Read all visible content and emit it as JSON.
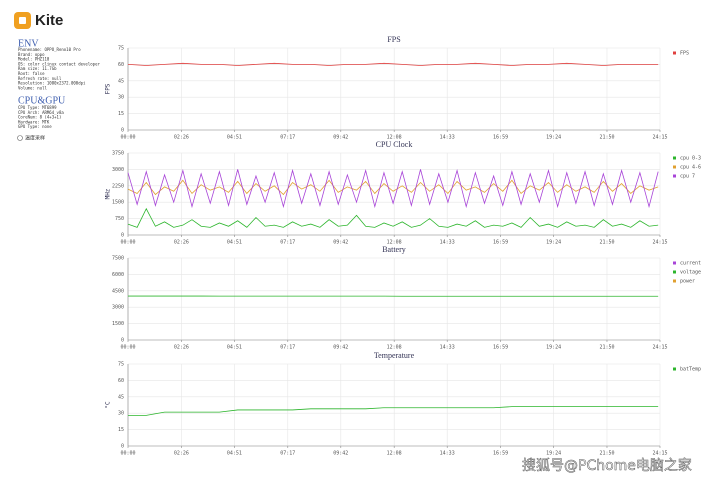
{
  "sidebar": {
    "logo": "Kite",
    "env_title": "ENV",
    "env_lines": [
      "Phonename: OPPO_Reno10 Pro",
      "Brand: oppo",
      "Model: PHZ110",
      "OS: color clinux contact developer",
      "Ram size: 11.7Gb",
      "Root: false",
      "Refresh rate: null",
      "Resolution: 1080x2372.000dpi",
      "Volume: null"
    ],
    "cpu_title": "CPU&GPU",
    "cpu_lines": [
      "CPU Type: MT6899",
      "CPU Arch: ARM64_v8a",
      "CoreNum: 8 (4+3+1)",
      "Hardware: MTK",
      "GPU Type: none"
    ],
    "checkbox_label": "温度采样"
  },
  "watermark": "搜狐号@PChome电脑之家",
  "chart_data": [
    {
      "type": "line",
      "title": "FPS",
      "y_label": "FPS",
      "grid": true,
      "xlim": [
        0,
        1455
      ],
      "xticks": [
        {
          "value": 0,
          "label": "00:00"
        },
        {
          "value": 146,
          "label": "02:26"
        },
        {
          "value": 291,
          "label": "04:51"
        },
        {
          "value": 437,
          "label": "07:17"
        },
        {
          "value": 582,
          "label": "09:42"
        },
        {
          "value": 728,
          "label": "12:08"
        },
        {
          "value": 873,
          "label": "14:33"
        },
        {
          "value": 1019,
          "label": "16:59"
        },
        {
          "value": 1164,
          "label": "19:24"
        },
        {
          "value": 1310,
          "label": "21:50"
        },
        {
          "value": 1455,
          "label": "24:15"
        }
      ],
      "ylim": [
        0,
        75
      ],
      "yticks": [
        0,
        15,
        30,
        45,
        60,
        75
      ],
      "x": [
        0,
        50,
        100,
        150,
        200,
        250,
        300,
        350,
        400,
        450,
        500,
        550,
        600,
        650,
        700,
        750,
        800,
        850,
        900,
        950,
        1000,
        1050,
        1100,
        1150,
        1200,
        1250,
        1300,
        1350,
        1400,
        1450
      ],
      "series": [
        {
          "name": "FPS",
          "color": "#e0403f",
          "values": [
            60,
            59,
            60,
            61,
            60,
            60,
            59,
            60,
            61,
            60,
            60,
            59,
            60,
            60,
            61,
            60,
            59,
            60,
            60,
            61,
            60,
            59,
            60,
            60,
            61,
            60,
            59,
            60,
            60,
            60
          ]
        }
      ]
    },
    {
      "type": "line",
      "title": "CPU Clock",
      "y_label": "MHz",
      "grid": true,
      "xlim": [
        0,
        1455
      ],
      "xticks": [
        {
          "value": 0,
          "label": "00:00"
        },
        {
          "value": 146,
          "label": "02:26"
        },
        {
          "value": 291,
          "label": "04:51"
        },
        {
          "value": 437,
          "label": "07:17"
        },
        {
          "value": 582,
          "label": "09:42"
        },
        {
          "value": 728,
          "label": "12:08"
        },
        {
          "value": 873,
          "label": "14:33"
        },
        {
          "value": 1019,
          "label": "16:59"
        },
        {
          "value": 1164,
          "label": "19:24"
        },
        {
          "value": 1310,
          "label": "21:50"
        },
        {
          "value": 1455,
          "label": "24:15"
        }
      ],
      "ylim": [
        0,
        3750
      ],
      "yticks": [
        0,
        750,
        1500,
        2250,
        3000,
        3750
      ],
      "x": [
        0,
        25,
        50,
        75,
        100,
        125,
        150,
        175,
        200,
        225,
        250,
        275,
        300,
        325,
        350,
        375,
        400,
        425,
        450,
        475,
        500,
        525,
        550,
        575,
        600,
        625,
        650,
        675,
        700,
        725,
        750,
        775,
        800,
        825,
        850,
        875,
        900,
        925,
        950,
        975,
        1000,
        1025,
        1050,
        1075,
        1100,
        1125,
        1150,
        1175,
        1200,
        1225,
        1250,
        1275,
        1300,
        1325,
        1350,
        1375,
        1400,
        1425,
        1450
      ],
      "series": [
        {
          "name": "cpu 0-3",
          "color": "#2cb52c",
          "values": [
            500,
            350,
            1200,
            400,
            600,
            350,
            450,
            700,
            400,
            350,
            550,
            400,
            650,
            350,
            800,
            400,
            450,
            350,
            600,
            400,
            500,
            350,
            700,
            400,
            450,
            900,
            400,
            350,
            550,
            400,
            600,
            350,
            450,
            750,
            400,
            350,
            500,
            400,
            650,
            350,
            450,
            400,
            550,
            350,
            800,
            400,
            500,
            350,
            600,
            400,
            450,
            350,
            700,
            400,
            500,
            350,
            650,
            400,
            450
          ]
        },
        {
          "name": "cpu 4-6",
          "color": "#e0a030",
          "values": [
            2100,
            1900,
            2400,
            1850,
            2200,
            2000,
            2500,
            1900,
            2300,
            2050,
            2200,
            1950,
            2450,
            1900,
            2350,
            2000,
            2250,
            1850,
            2400,
            2100,
            2300,
            2000,
            2500,
            1950,
            2200,
            2050,
            2450,
            1900,
            2350,
            2000,
            2250,
            1950,
            2400,
            2000,
            2300,
            1900,
            2450,
            2050,
            2200,
            1950,
            2350,
            2000,
            2500,
            1900,
            2250,
            2050,
            2400,
            1950,
            2300,
            2000,
            2200,
            1950,
            2450,
            2000,
            2350,
            1900,
            2250,
            2050,
            2200
          ]
        },
        {
          "name": "cpu 7",
          "color": "#a844d8",
          "values": [
            2850,
            1400,
            2900,
            1350,
            2750,
            1500,
            2950,
            1300,
            2800,
            1450,
            2900,
            1350,
            3000,
            1400,
            2700,
            1500,
            2850,
            1300,
            2950,
            1450,
            2800,
            1350,
            2900,
            1400,
            2750,
            1500,
            2950,
            1300,
            2850,
            1450,
            2900,
            1350,
            3000,
            1400,
            2800,
            1500,
            2950,
            1300,
            2850,
            1450,
            2700,
            1350,
            2900,
            1400,
            2800,
            1500,
            2950,
            1300,
            2850,
            1450,
            2900,
            1350,
            2800,
            1400,
            2950,
            1500,
            2850,
            1300,
            2900
          ]
        }
      ]
    },
    {
      "type": "line",
      "title": "Battery",
      "grid": true,
      "xlim": [
        0,
        1455
      ],
      "xticks": [
        {
          "value": 0,
          "label": "00:00"
        },
        {
          "value": 146,
          "label": "02:26"
        },
        {
          "value": 291,
          "label": "04:51"
        },
        {
          "value": 437,
          "label": "07:17"
        },
        {
          "value": 582,
          "label": "09:42"
        },
        {
          "value": 728,
          "label": "12:08"
        },
        {
          "value": 873,
          "label": "14:33"
        },
        {
          "value": 1019,
          "label": "16:59"
        },
        {
          "value": 1164,
          "label": "19:24"
        },
        {
          "value": 1310,
          "label": "21:50"
        },
        {
          "value": 1455,
          "label": "24:15"
        }
      ],
      "ylim": [
        0,
        7500
      ],
      "yticks": [
        0,
        1500,
        3000,
        4500,
        6000,
        7500
      ],
      "x": [
        0,
        50,
        100,
        150,
        200,
        250,
        300,
        350,
        400,
        450,
        500,
        550,
        600,
        650,
        700,
        750,
        800,
        850,
        900,
        950,
        1000,
        1050,
        1100,
        1150,
        1200,
        1250,
        1300,
        1350,
        1400,
        1450
      ],
      "series": [
        {
          "name": "current",
          "color": "#a844d8",
          "values": [
            null,
            null,
            null,
            null,
            null,
            null,
            null,
            null,
            null,
            null,
            null,
            null,
            null,
            null,
            null,
            null,
            null,
            null,
            null,
            null,
            null,
            null,
            null,
            null,
            null,
            null,
            null,
            null,
            null,
            null
          ]
        },
        {
          "name": "voltage",
          "color": "#2cb52c",
          "values": [
            4020,
            4020,
            4020,
            4020,
            4020,
            4010,
            4010,
            4010,
            4010,
            4010,
            4010,
            4010,
            4010,
            4010,
            4010,
            4000,
            4000,
            4000,
            4000,
            4000,
            4000,
            4000,
            4000,
            4000,
            4000,
            4000,
            4000,
            4000,
            4000,
            4000
          ]
        },
        {
          "name": "power",
          "color": "#e0a030",
          "values": [
            null,
            null,
            null,
            null,
            null,
            null,
            null,
            null,
            null,
            null,
            null,
            null,
            null,
            null,
            null,
            null,
            null,
            null,
            null,
            null,
            null,
            null,
            null,
            null,
            null,
            null,
            null,
            null,
            null,
            null
          ]
        }
      ]
    },
    {
      "type": "line",
      "title": "Temperature",
      "y_label": "°C",
      "grid": true,
      "xlim": [
        0,
        1455
      ],
      "xticks": [
        {
          "value": 0,
          "label": "00:00"
        },
        {
          "value": 146,
          "label": "02:26"
        },
        {
          "value": 291,
          "label": "04:51"
        },
        {
          "value": 437,
          "label": "07:17"
        },
        {
          "value": 582,
          "label": "09:42"
        },
        {
          "value": 728,
          "label": "12:08"
        },
        {
          "value": 873,
          "label": "14:33"
        },
        {
          "value": 1019,
          "label": "16:59"
        },
        {
          "value": 1164,
          "label": "19:24"
        },
        {
          "value": 1310,
          "label": "21:50"
        },
        {
          "value": 1455,
          "label": "24:15"
        }
      ],
      "ylim": [
        0,
        75
      ],
      "yticks": [
        0,
        15,
        30,
        45,
        60,
        75
      ],
      "x": [
        0,
        50,
        100,
        150,
        200,
        250,
        300,
        350,
        400,
        450,
        500,
        550,
        600,
        650,
        700,
        750,
        800,
        850,
        900,
        950,
        1000,
        1050,
        1100,
        1150,
        1200,
        1250,
        1300,
        1350,
        1400,
        1450
      ],
      "series": [
        {
          "name": "batTemp",
          "color": "#2cb52c",
          "values": [
            28,
            28,
            31,
            31,
            31,
            31,
            33,
            33,
            33,
            33,
            34,
            34,
            34,
            34,
            35,
            35,
            35,
            35,
            35,
            35,
            35,
            36,
            36,
            36,
            36,
            36,
            36,
            36,
            36,
            36
          ]
        }
      ]
    }
  ]
}
